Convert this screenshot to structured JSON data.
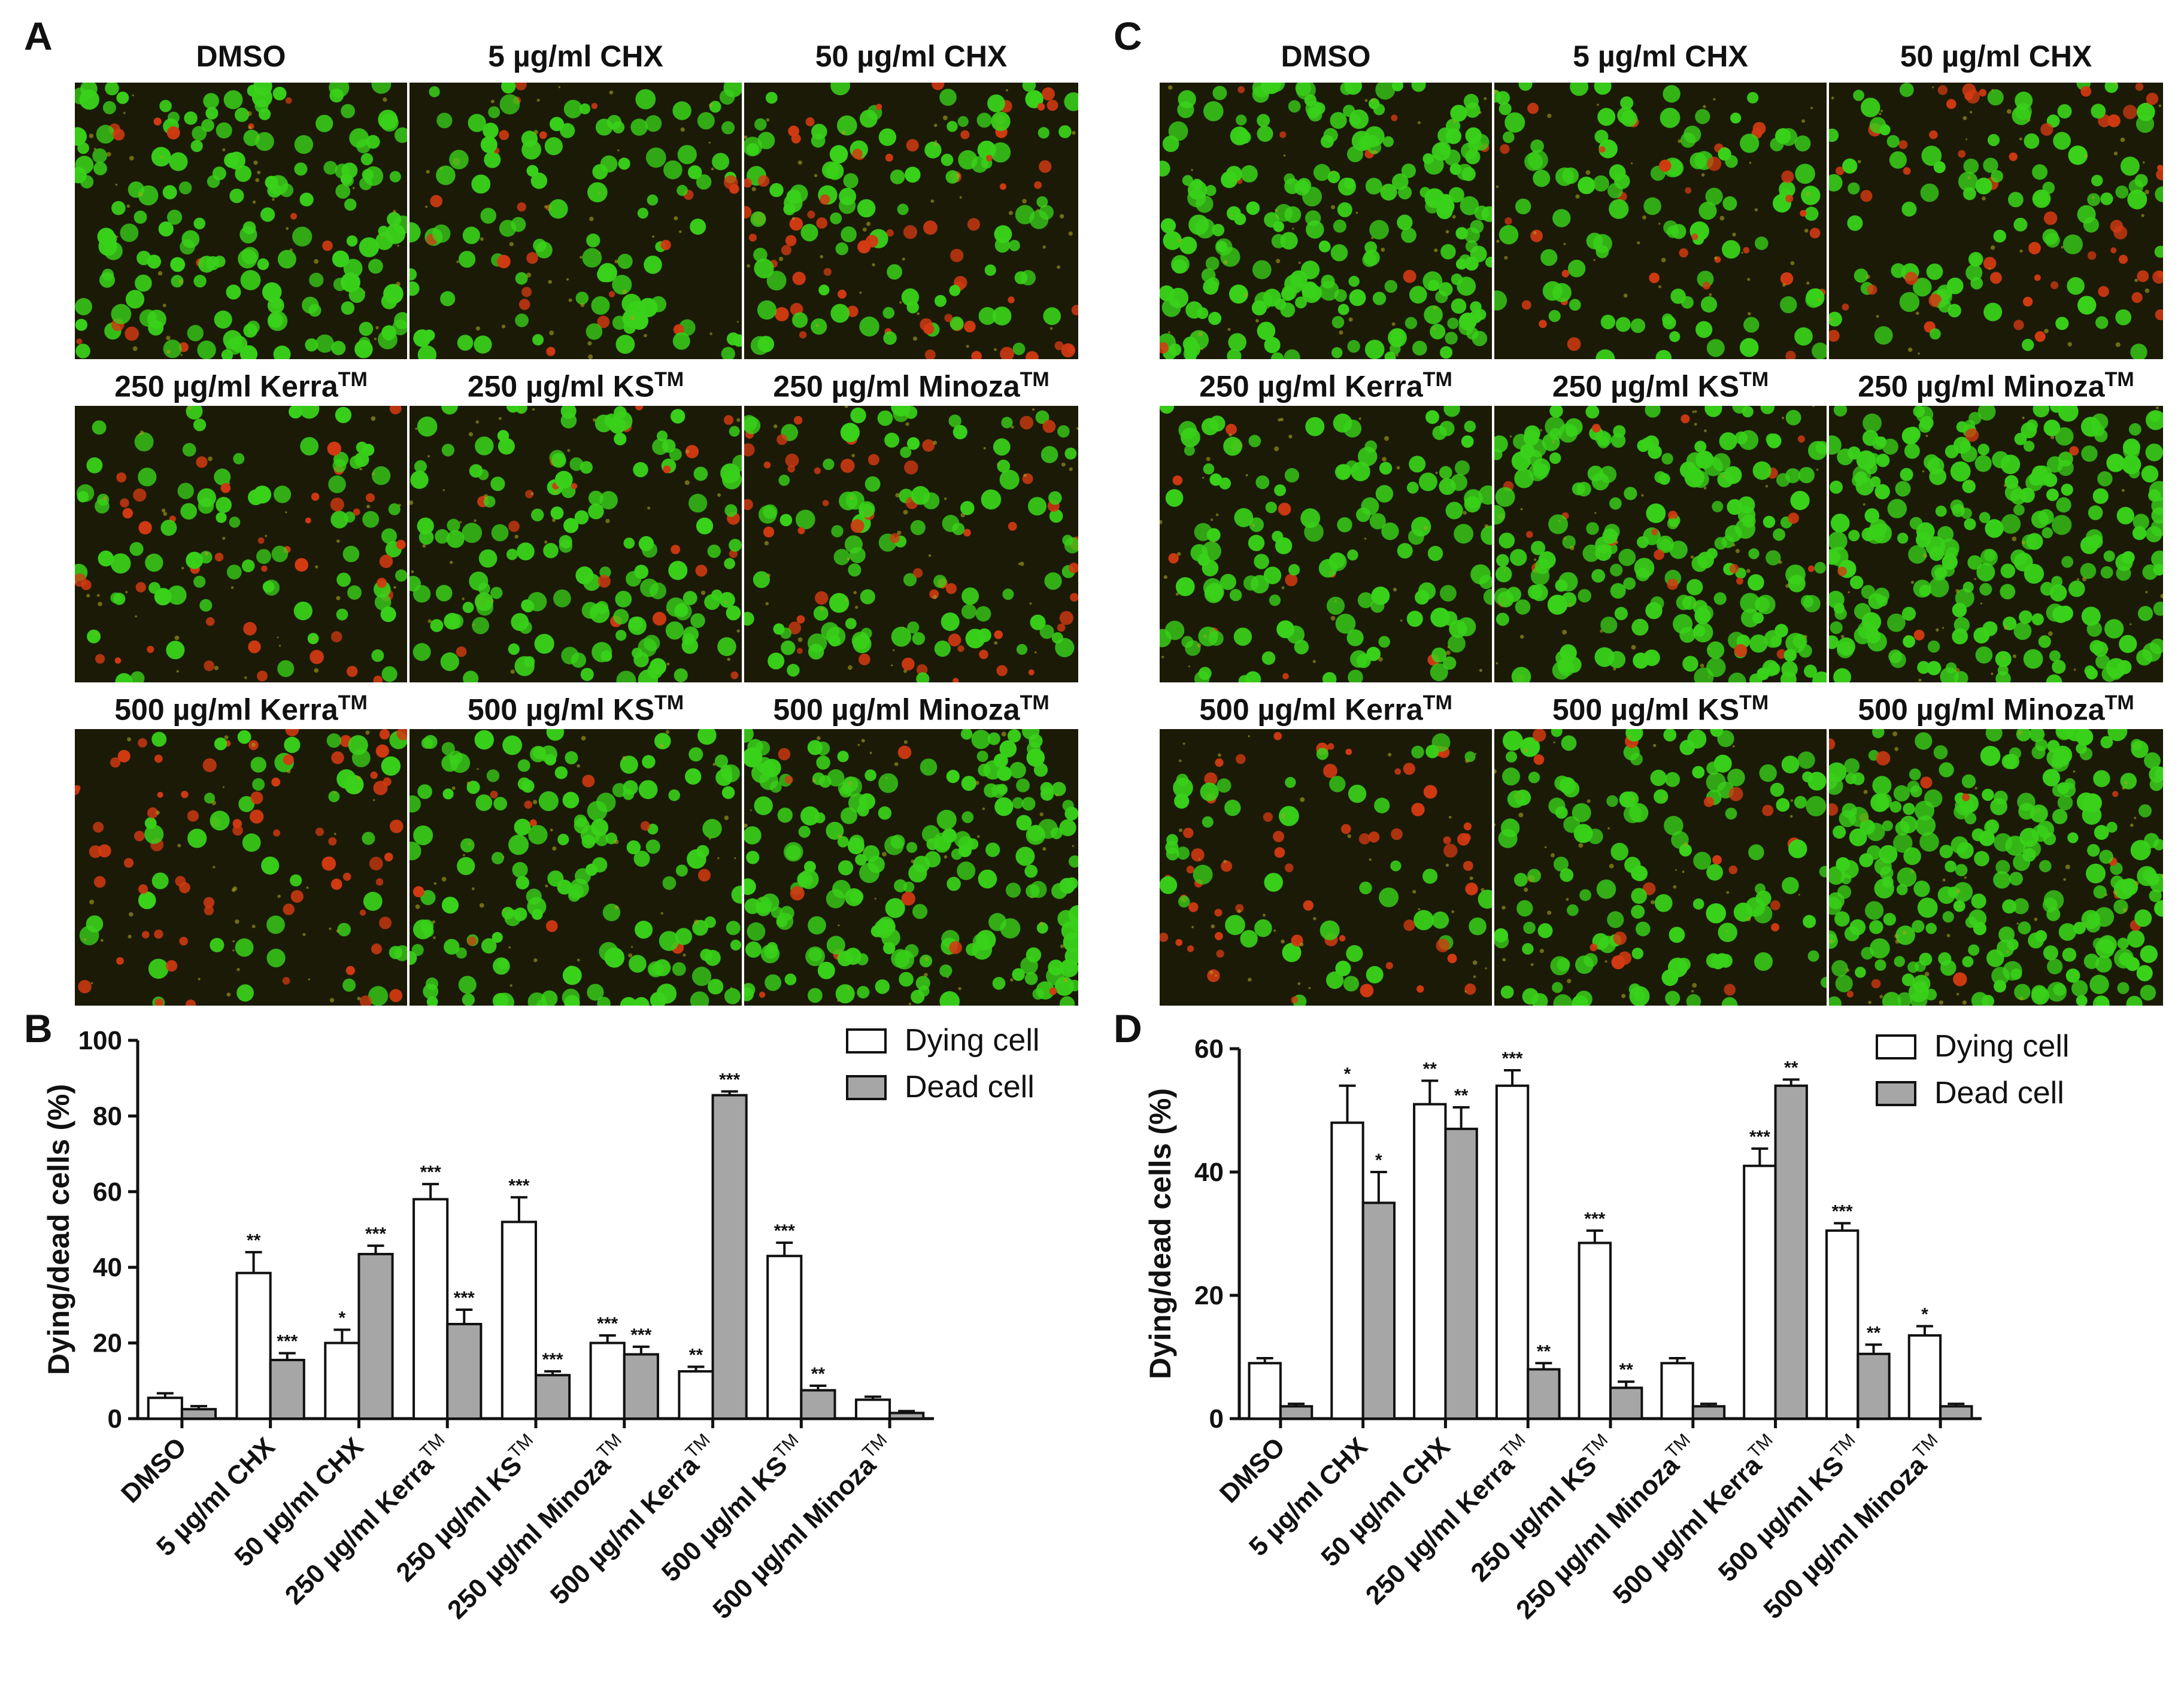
{
  "panels": {
    "A": "A",
    "B": "B",
    "C": "C",
    "D": "D"
  },
  "micrographs": {
    "A": [
      {
        "title": "DMSO",
        "sup": ""
      },
      {
        "title": "5 µg/ml CHX",
        "sup": ""
      },
      {
        "title": "50 µg/ml CHX",
        "sup": ""
      },
      {
        "title": "250 µg/ml Kerra",
        "sup": "TM"
      },
      {
        "title": "250 µg/ml KS",
        "sup": "TM"
      },
      {
        "title": "250 µg/ml Minoza",
        "sup": "TM"
      },
      {
        "title": "500 µg/ml Kerra",
        "sup": "TM"
      },
      {
        "title": "500 µg/ml KS",
        "sup": "TM"
      },
      {
        "title": "500 µg/ml Minoza",
        "sup": "TM"
      }
    ],
    "C": [
      {
        "title": "DMSO",
        "sup": ""
      },
      {
        "title": "5 µg/ml CHX",
        "sup": ""
      },
      {
        "title": "50 µg/ml CHX",
        "sup": ""
      },
      {
        "title": "250 µg/ml Kerra",
        "sup": "TM"
      },
      {
        "title": "250 µg/ml KS",
        "sup": "TM"
      },
      {
        "title": "250 µg/ml Minoza",
        "sup": "TM"
      },
      {
        "title": "500 µg/ml Kerra",
        "sup": "TM"
      },
      {
        "title": "500 µg/ml KS",
        "sup": "TM"
      },
      {
        "title": "500 µg/ml Minoza",
        "sup": "TM"
      }
    ]
  },
  "colors": {
    "dying_fill": "#ffffff",
    "dead_fill": "#a6a6a6",
    "stroke": "#111111",
    "live_cell": "#39d11a",
    "dead_cell": "#d23a12",
    "micro_bg": "#1b1a06"
  },
  "chart_data": [
    {
      "id": "B",
      "type": "bar",
      "title": "",
      "xlabel": "",
      "ylabel": "Dying/dead cells (%)",
      "ylim": [
        0,
        100
      ],
      "yticks": [
        0,
        20,
        40,
        60,
        80,
        100
      ],
      "categories": [
        {
          "text": "DMSO",
          "sup": ""
        },
        {
          "text": "5 µg/ml CHX",
          "sup": ""
        },
        {
          "text": "50 µg/ml CHX",
          "sup": ""
        },
        {
          "text": "250 µg/ml Kerra",
          "sup": "TM"
        },
        {
          "text": "250 µg/ml KS",
          "sup": "TM"
        },
        {
          "text": "250 µg/ml Minoza",
          "sup": "TM"
        },
        {
          "text": "500 µg/ml Kerra",
          "sup": "TM"
        },
        {
          "text": "500 µg/ml KS",
          "sup": "TM"
        },
        {
          "text": "500 µg/ml Minoza",
          "sup": "TM"
        }
      ],
      "legend_position": "top-right",
      "series": [
        {
          "name": "Dying cell",
          "values": [
            5.5,
            38.5,
            20,
            58,
            52,
            20,
            12.5,
            43,
            5
          ],
          "errors": [
            1.2,
            5.5,
            3.5,
            4,
            6.5,
            2,
            1.2,
            3.5,
            0.8
          ],
          "sig": [
            "",
            "**",
            "*",
            "***",
            "***",
            "***",
            "**",
            "***",
            ""
          ]
        },
        {
          "name": "Dead cell",
          "values": [
            2.5,
            15.5,
            43.5,
            25,
            11.5,
            17,
            85.5,
            7.5,
            1.5
          ],
          "errors": [
            0.8,
            1.8,
            2.2,
            3.8,
            1.0,
            2.0,
            1.0,
            1.2,
            0.5
          ],
          "sig": [
            "",
            "***",
            "***",
            "***",
            "***",
            "***",
            "***",
            "**",
            ""
          ]
        }
      ]
    },
    {
      "id": "D",
      "type": "bar",
      "title": "",
      "xlabel": "",
      "ylabel": "Dying/dead cells (%)",
      "ylim": [
        0,
        60
      ],
      "yticks": [
        0,
        20,
        40,
        60
      ],
      "categories": [
        {
          "text": "DMSO",
          "sup": ""
        },
        {
          "text": "5 µg/ml CHX",
          "sup": ""
        },
        {
          "text": "50 µg/ml CHX",
          "sup": ""
        },
        {
          "text": "250 µg/ml Kerra",
          "sup": "TM"
        },
        {
          "text": "250 µg/ml KS",
          "sup": "TM"
        },
        {
          "text": "250 µg/ml Minoza",
          "sup": "TM"
        },
        {
          "text": "500 µg/ml Kerra",
          "sup": "TM"
        },
        {
          "text": "500 µg/ml KS",
          "sup": "TM"
        },
        {
          "text": "500 µg/ml Minoza",
          "sup": "TM"
        }
      ],
      "legend_position": "top-right",
      "series": [
        {
          "name": "Dying cell",
          "values": [
            9,
            48,
            51,
            54,
            28.5,
            9,
            41,
            30.5,
            13.5
          ],
          "errors": [
            0.8,
            6,
            3.8,
            2.5,
            2,
            0.8,
            2.8,
            1.2,
            1.5
          ],
          "sig": [
            "",
            "*",
            "**",
            "***",
            "***",
            "",
            "***",
            "***",
            "*"
          ]
        },
        {
          "name": "Dead cell",
          "values": [
            2,
            35,
            47,
            8,
            5,
            2,
            54,
            10.5,
            2
          ],
          "errors": [
            0.4,
            5,
            3.5,
            1,
            1,
            0.4,
            1,
            1.5,
            0.4
          ],
          "sig": [
            "",
            "*",
            "**",
            "**",
            "**",
            "",
            "**",
            "**",
            ""
          ]
        }
      ]
    }
  ]
}
